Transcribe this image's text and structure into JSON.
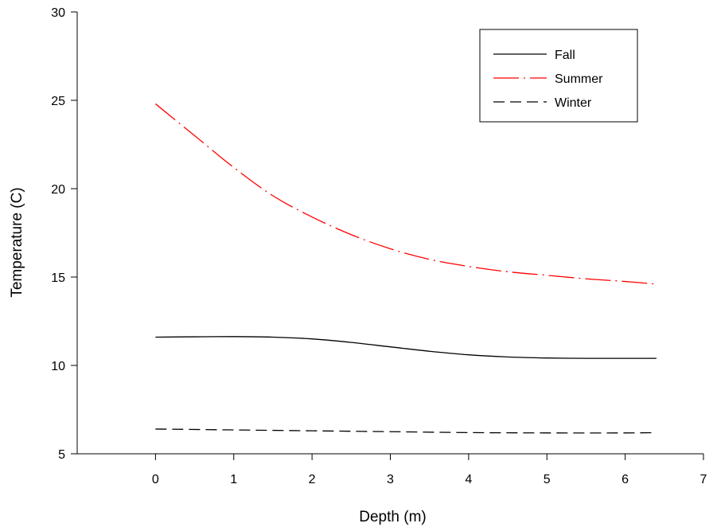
{
  "chart_data": {
    "type": "line",
    "xlabel": "Depth (m)",
    "ylabel": "Temperature (C)",
    "xlim": [
      -1,
      7
    ],
    "ylim": [
      5,
      30
    ],
    "xticks": [
      0,
      1,
      2,
      3,
      4,
      5,
      6,
      7
    ],
    "yticks": [
      5,
      10,
      15,
      20,
      25,
      30
    ],
    "grid": false,
    "legend_position": "top-right",
    "series": [
      {
        "name": "Fall",
        "color": "#000000",
        "dash": "solid",
        "x": [
          0,
          0.5,
          1,
          1.5,
          2,
          2.5,
          3,
          3.5,
          4,
          4.5,
          5,
          5.5,
          6,
          6.4
        ],
        "y": [
          11.6,
          11.62,
          11.63,
          11.6,
          11.5,
          11.3,
          11.05,
          10.8,
          10.6,
          10.48,
          10.42,
          10.4,
          10.4,
          10.4
        ]
      },
      {
        "name": "Summer",
        "color": "#ff0000",
        "dash": "long-dash-dot",
        "x": [
          0,
          0.5,
          1,
          1.5,
          2,
          2.5,
          3,
          3.5,
          4,
          4.5,
          5,
          5.5,
          6,
          6.4
        ],
        "y": [
          24.8,
          23.0,
          21.2,
          19.6,
          18.4,
          17.4,
          16.6,
          16.0,
          15.6,
          15.3,
          15.1,
          14.9,
          14.75,
          14.6
        ]
      },
      {
        "name": "Winter",
        "color": "#000000",
        "dash": "dashed",
        "x": [
          0,
          1,
          2,
          3,
          4,
          5,
          6,
          6.4
        ],
        "y": [
          6.4,
          6.35,
          6.3,
          6.25,
          6.2,
          6.18,
          6.18,
          6.2
        ]
      }
    ]
  }
}
